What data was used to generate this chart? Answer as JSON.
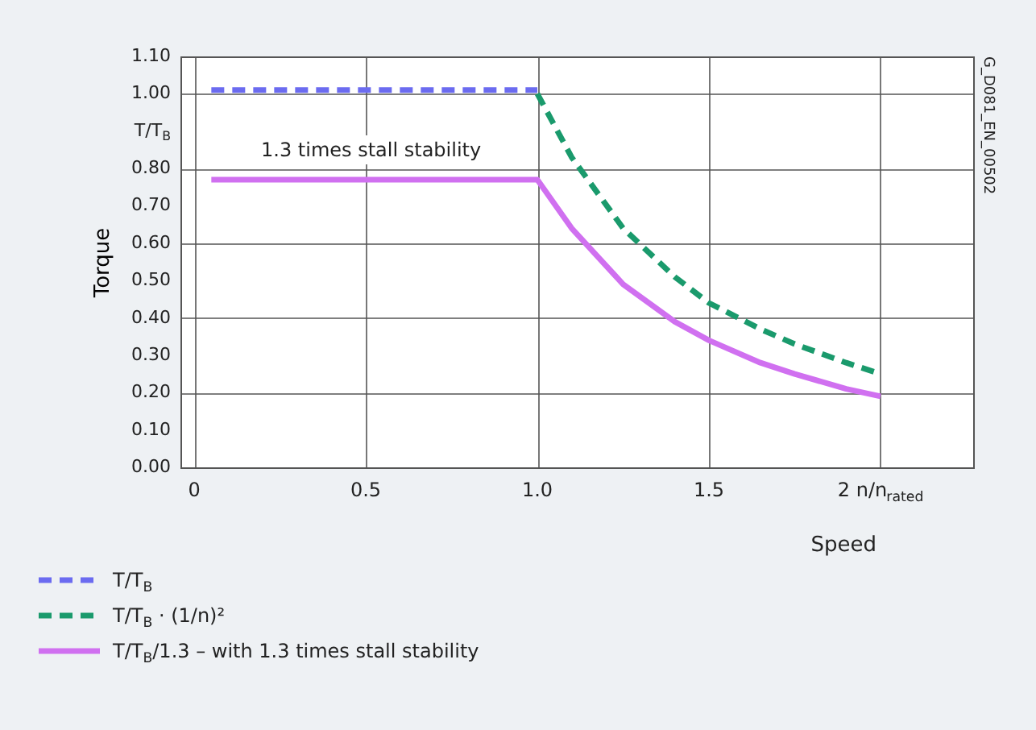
{
  "chart_data": {
    "type": "line",
    "xlabel": "Speed",
    "ylabel": "Torque",
    "xlim": [
      -0.04,
      2.27
    ],
    "xticks": [
      0,
      0.5,
      {
        "value": 1,
        "label": "1.0"
      },
      1.5,
      {
        "value": 2,
        "label": "2 n/n$_{rated}$"
      }
    ],
    "ylim": [
      0,
      1.1
    ],
    "yticks": [
      {
        "value": 0,
        "label": "0.00"
      },
      {
        "value": 0.1,
        "label": "0.10"
      },
      {
        "value": 0.2,
        "label": "0.20"
      },
      {
        "value": 0.3,
        "label": "0.30"
      },
      {
        "value": 0.4,
        "label": "0.40"
      },
      {
        "value": 0.5,
        "label": "0.50"
      },
      {
        "value": 0.6,
        "label": "0.60"
      },
      {
        "value": 0.7,
        "label": "0.70"
      },
      {
        "value": 0.8,
        "label": "0.80"
      },
      {
        "value": 0.9,
        "label": "T/T$_{B}$"
      },
      {
        "value": 1.0,
        "label": "1.00"
      },
      {
        "value": 1.1,
        "label": "1.10"
      }
    ],
    "grid": true,
    "legend": "bottom",
    "series": [
      {
        "name": "T/T$_{B}$",
        "color": "#6b6bf0",
        "line_style": "dashed",
        "x": [
          0.05,
          1.0
        ],
        "values": [
          1.01,
          1.01
        ]
      },
      {
        "name": "T/T$_{B}$ · (1/n)²",
        "color": "#1a9a6c",
        "line_style": "dashed",
        "x": [
          1.0,
          1.1,
          1.25,
          1.4,
          1.5,
          1.65,
          1.75,
          1.9,
          2.0
        ],
        "values": [
          1.0,
          0.83,
          0.64,
          0.51,
          0.44,
          0.37,
          0.33,
          0.28,
          0.25
        ]
      },
      {
        "name": "T/T$_{B}$/1.3 – with 1.3 times stall stability",
        "color": "#d070f0",
        "line_style": "solid",
        "x": [
          0.05,
          1.0,
          1.1,
          1.25,
          1.4,
          1.5,
          1.65,
          1.75,
          1.9,
          2.0
        ],
        "values": [
          0.77,
          0.77,
          0.64,
          0.49,
          0.39,
          0.34,
          0.28,
          0.25,
          0.21,
          0.19
        ]
      }
    ],
    "annotations": [
      "1.3 times stall stability",
      "G_D081_EN_00502"
    ]
  }
}
